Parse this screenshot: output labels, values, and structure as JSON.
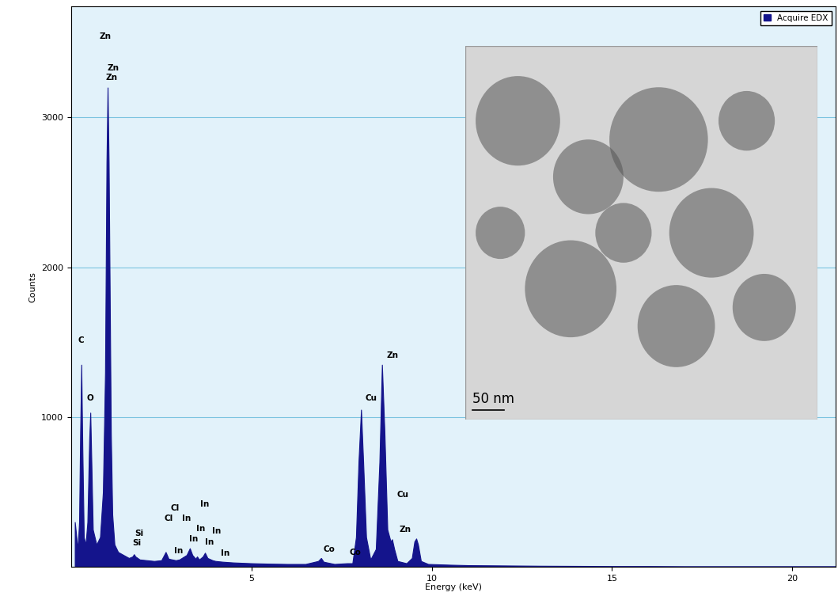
{
  "chart_data": {
    "type": "area",
    "x_label": "Energy (keV)",
    "y_label": "Counts",
    "series": [
      {
        "name": "Acquire EDX",
        "color": "#14148c",
        "x": [
          0.1,
          0.18,
          0.22,
          0.25,
          0.28,
          0.31,
          0.35,
          0.4,
          0.45,
          0.5,
          0.53,
          0.56,
          0.6,
          0.7,
          0.8,
          0.88,
          0.94,
          0.98,
          1.01,
          1.04,
          1.07,
          1.1,
          1.14,
          1.2,
          1.3,
          1.45,
          1.6,
          1.7,
          1.74,
          1.78,
          1.9,
          2.1,
          2.3,
          2.5,
          2.62,
          2.7,
          2.9,
          3.0,
          3.2,
          3.29,
          3.36,
          3.45,
          3.49,
          3.55,
          3.65,
          3.71,
          3.78,
          3.92,
          4.0,
          4.2,
          4.5,
          5.0,
          5.5,
          6.0,
          6.5,
          6.85,
          6.93,
          7.0,
          7.3,
          7.65,
          7.8,
          7.9,
          7.97,
          8.04,
          8.1,
          8.18,
          8.3,
          8.45,
          8.55,
          8.62,
          8.69,
          8.77,
          8.86,
          8.9,
          8.96,
          9.05,
          9.3,
          9.45,
          9.52,
          9.57,
          9.62,
          9.7,
          9.9,
          10.5,
          11.0,
          12.0,
          13.0,
          14.0,
          15.0,
          16.0,
          17.0,
          18.0,
          19.0,
          20.0,
          21.2
        ],
        "values": [
          300,
          120,
          300,
          900,
          1350,
          800,
          200,
          150,
          300,
          850,
          1030,
          700,
          250,
          150,
          200,
          500,
          1300,
          2700,
          3200,
          2700,
          1800,
          900,
          350,
          150,
          100,
          80,
          60,
          70,
          85,
          70,
          50,
          45,
          40,
          45,
          100,
          55,
          45,
          50,
          80,
          125,
          80,
          55,
          70,
          50,
          70,
          95,
          60,
          45,
          40,
          35,
          30,
          25,
          22,
          20,
          20,
          40,
          60,
          35,
          20,
          25,
          25,
          200,
          700,
          1050,
          700,
          200,
          50,
          120,
          700,
          1350,
          900,
          250,
          170,
          185,
          120,
          40,
          25,
          60,
          170,
          190,
          150,
          40,
          20,
          15,
          12,
          10,
          8,
          7,
          6,
          6,
          5,
          5,
          5,
          5,
          5
        ]
      }
    ],
    "xlim": [
      0,
      21.2
    ],
    "xticks": [
      5,
      10,
      15,
      20
    ],
    "ylim": [
      0,
      3740
    ],
    "yticks": [
      1000,
      2000,
      3000
    ],
    "grid": true,
    "legend": "upper right",
    "annotations": [
      {
        "text": "Zn",
        "x": 0.77,
        "y": 3513
      },
      {
        "text": "Zn",
        "x": 1.0,
        "y": 3304
      },
      {
        "text": "Zn",
        "x": 0.95,
        "y": 3241
      },
      {
        "text": "C",
        "x": 0.18,
        "y": 1487
      },
      {
        "text": "O",
        "x": 0.42,
        "y": 1099
      },
      {
        "text": "Si",
        "x": 1.76,
        "y": 199
      },
      {
        "text": "Si",
        "x": 1.7,
        "y": 136
      },
      {
        "text": "Cl",
        "x": 2.75,
        "y": 366
      },
      {
        "text": "Cl",
        "x": 2.58,
        "y": 298
      },
      {
        "text": "In",
        "x": 3.08,
        "y": 298
      },
      {
        "text": "In",
        "x": 2.86,
        "y": 79
      },
      {
        "text": "In",
        "x": 3.26,
        "y": 162
      },
      {
        "text": "In",
        "x": 3.46,
        "y": 230
      },
      {
        "text": "In",
        "x": 3.7,
        "y": 141
      },
      {
        "text": "In",
        "x": 3.9,
        "y": 215
      },
      {
        "text": "In",
        "x": 4.14,
        "y": 63
      },
      {
        "text": "In",
        "x": 3.57,
        "y": 393
      },
      {
        "text": "Co",
        "x": 7.0,
        "y": 89
      },
      {
        "text": "Co",
        "x": 7.71,
        "y": 68
      },
      {
        "text": "Cu",
        "x": 8.15,
        "y": 1099
      },
      {
        "text": "Cu",
        "x": 9.03,
        "y": 456
      },
      {
        "text": "Zn",
        "x": 8.74,
        "y": 1387
      },
      {
        "text": "Zn",
        "x": 9.1,
        "y": 225
      }
    ],
    "inset": {
      "scale_bar_label": "50 nm"
    }
  }
}
